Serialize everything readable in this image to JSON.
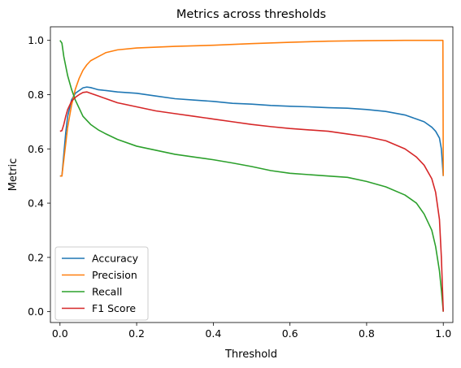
{
  "chart_data": {
    "type": "line",
    "title": "Metrics across thresholds",
    "xlabel": "Threshold",
    "ylabel": "Metric",
    "xlim": [
      -0.025,
      1.025
    ],
    "ylim": [
      -0.04,
      1.05
    ],
    "xticks": [
      0.0,
      0.2,
      0.4,
      0.6,
      0.8,
      1.0
    ],
    "xtick_labels": [
      "0.0",
      "0.2",
      "0.4",
      "0.6",
      "0.8",
      "1.0"
    ],
    "yticks": [
      0.0,
      0.2,
      0.4,
      0.6,
      0.8,
      1.0
    ],
    "ytick_labels": [
      "0.0",
      "0.2",
      "0.4",
      "0.6",
      "0.8",
      "1.0"
    ],
    "grid": false,
    "legend_position": "lower-left",
    "series": [
      {
        "name": "Accuracy",
        "color": "#1f77b4",
        "x": [
          0.0,
          0.005,
          0.01,
          0.015,
          0.02,
          0.03,
          0.04,
          0.05,
          0.06,
          0.07,
          0.08,
          0.09,
          0.1,
          0.12,
          0.15,
          0.2,
          0.25,
          0.3,
          0.35,
          0.4,
          0.45,
          0.5,
          0.55,
          0.6,
          0.65,
          0.7,
          0.75,
          0.8,
          0.85,
          0.9,
          0.93,
          0.95,
          0.97,
          0.98,
          0.99,
          0.995,
          1.0
        ],
        "y": [
          0.5,
          0.5,
          0.58,
          0.66,
          0.72,
          0.78,
          0.805,
          0.815,
          0.825,
          0.828,
          0.826,
          0.822,
          0.818,
          0.815,
          0.81,
          0.805,
          0.795,
          0.785,
          0.78,
          0.775,
          0.768,
          0.765,
          0.76,
          0.757,
          0.755,
          0.752,
          0.75,
          0.745,
          0.738,
          0.725,
          0.71,
          0.7,
          0.68,
          0.665,
          0.64,
          0.6,
          0.5
        ]
      },
      {
        "name": "Precision",
        "color": "#ff7f0e",
        "x": [
          0.0,
          0.005,
          0.01,
          0.015,
          0.02,
          0.03,
          0.04,
          0.05,
          0.06,
          0.07,
          0.08,
          0.1,
          0.12,
          0.15,
          0.2,
          0.25,
          0.3,
          0.4,
          0.5,
          0.6,
          0.7,
          0.8,
          0.9,
          0.999,
          1.0
        ],
        "y": [
          0.5,
          0.5,
          0.56,
          0.62,
          0.68,
          0.76,
          0.82,
          0.86,
          0.89,
          0.91,
          0.925,
          0.94,
          0.955,
          0.965,
          0.972,
          0.975,
          0.978,
          0.982,
          0.988,
          0.993,
          0.997,
          0.999,
          1.0,
          1.0,
          0.5
        ]
      },
      {
        "name": "Recall",
        "color": "#2ca02c",
        "x": [
          0.0,
          0.005,
          0.01,
          0.02,
          0.03,
          0.04,
          0.05,
          0.06,
          0.08,
          0.1,
          0.12,
          0.15,
          0.2,
          0.25,
          0.3,
          0.35,
          0.4,
          0.45,
          0.5,
          0.55,
          0.6,
          0.65,
          0.7,
          0.75,
          0.8,
          0.85,
          0.9,
          0.93,
          0.95,
          0.97,
          0.98,
          0.99,
          0.995,
          1.0
        ],
        "y": [
          1.0,
          0.99,
          0.94,
          0.87,
          0.82,
          0.78,
          0.75,
          0.72,
          0.69,
          0.67,
          0.655,
          0.635,
          0.61,
          0.595,
          0.58,
          0.57,
          0.56,
          0.548,
          0.535,
          0.52,
          0.51,
          0.505,
          0.5,
          0.495,
          0.48,
          0.46,
          0.43,
          0.4,
          0.36,
          0.3,
          0.24,
          0.15,
          0.08,
          0.0
        ]
      },
      {
        "name": "F1 Score",
        "color": "#d62728",
        "x": [
          0.0,
          0.005,
          0.01,
          0.015,
          0.02,
          0.03,
          0.04,
          0.05,
          0.06,
          0.07,
          0.08,
          0.1,
          0.12,
          0.15,
          0.2,
          0.25,
          0.3,
          0.35,
          0.4,
          0.45,
          0.5,
          0.55,
          0.6,
          0.65,
          0.7,
          0.75,
          0.8,
          0.85,
          0.9,
          0.93,
          0.95,
          0.97,
          0.98,
          0.99,
          0.995,
          1.0
        ],
        "y": [
          0.665,
          0.667,
          0.69,
          0.72,
          0.745,
          0.775,
          0.79,
          0.8,
          0.808,
          0.81,
          0.805,
          0.795,
          0.785,
          0.77,
          0.755,
          0.74,
          0.73,
          0.72,
          0.71,
          0.7,
          0.69,
          0.682,
          0.675,
          0.67,
          0.665,
          0.655,
          0.645,
          0.63,
          0.6,
          0.57,
          0.54,
          0.49,
          0.44,
          0.34,
          0.2,
          0.0
        ]
      }
    ]
  }
}
